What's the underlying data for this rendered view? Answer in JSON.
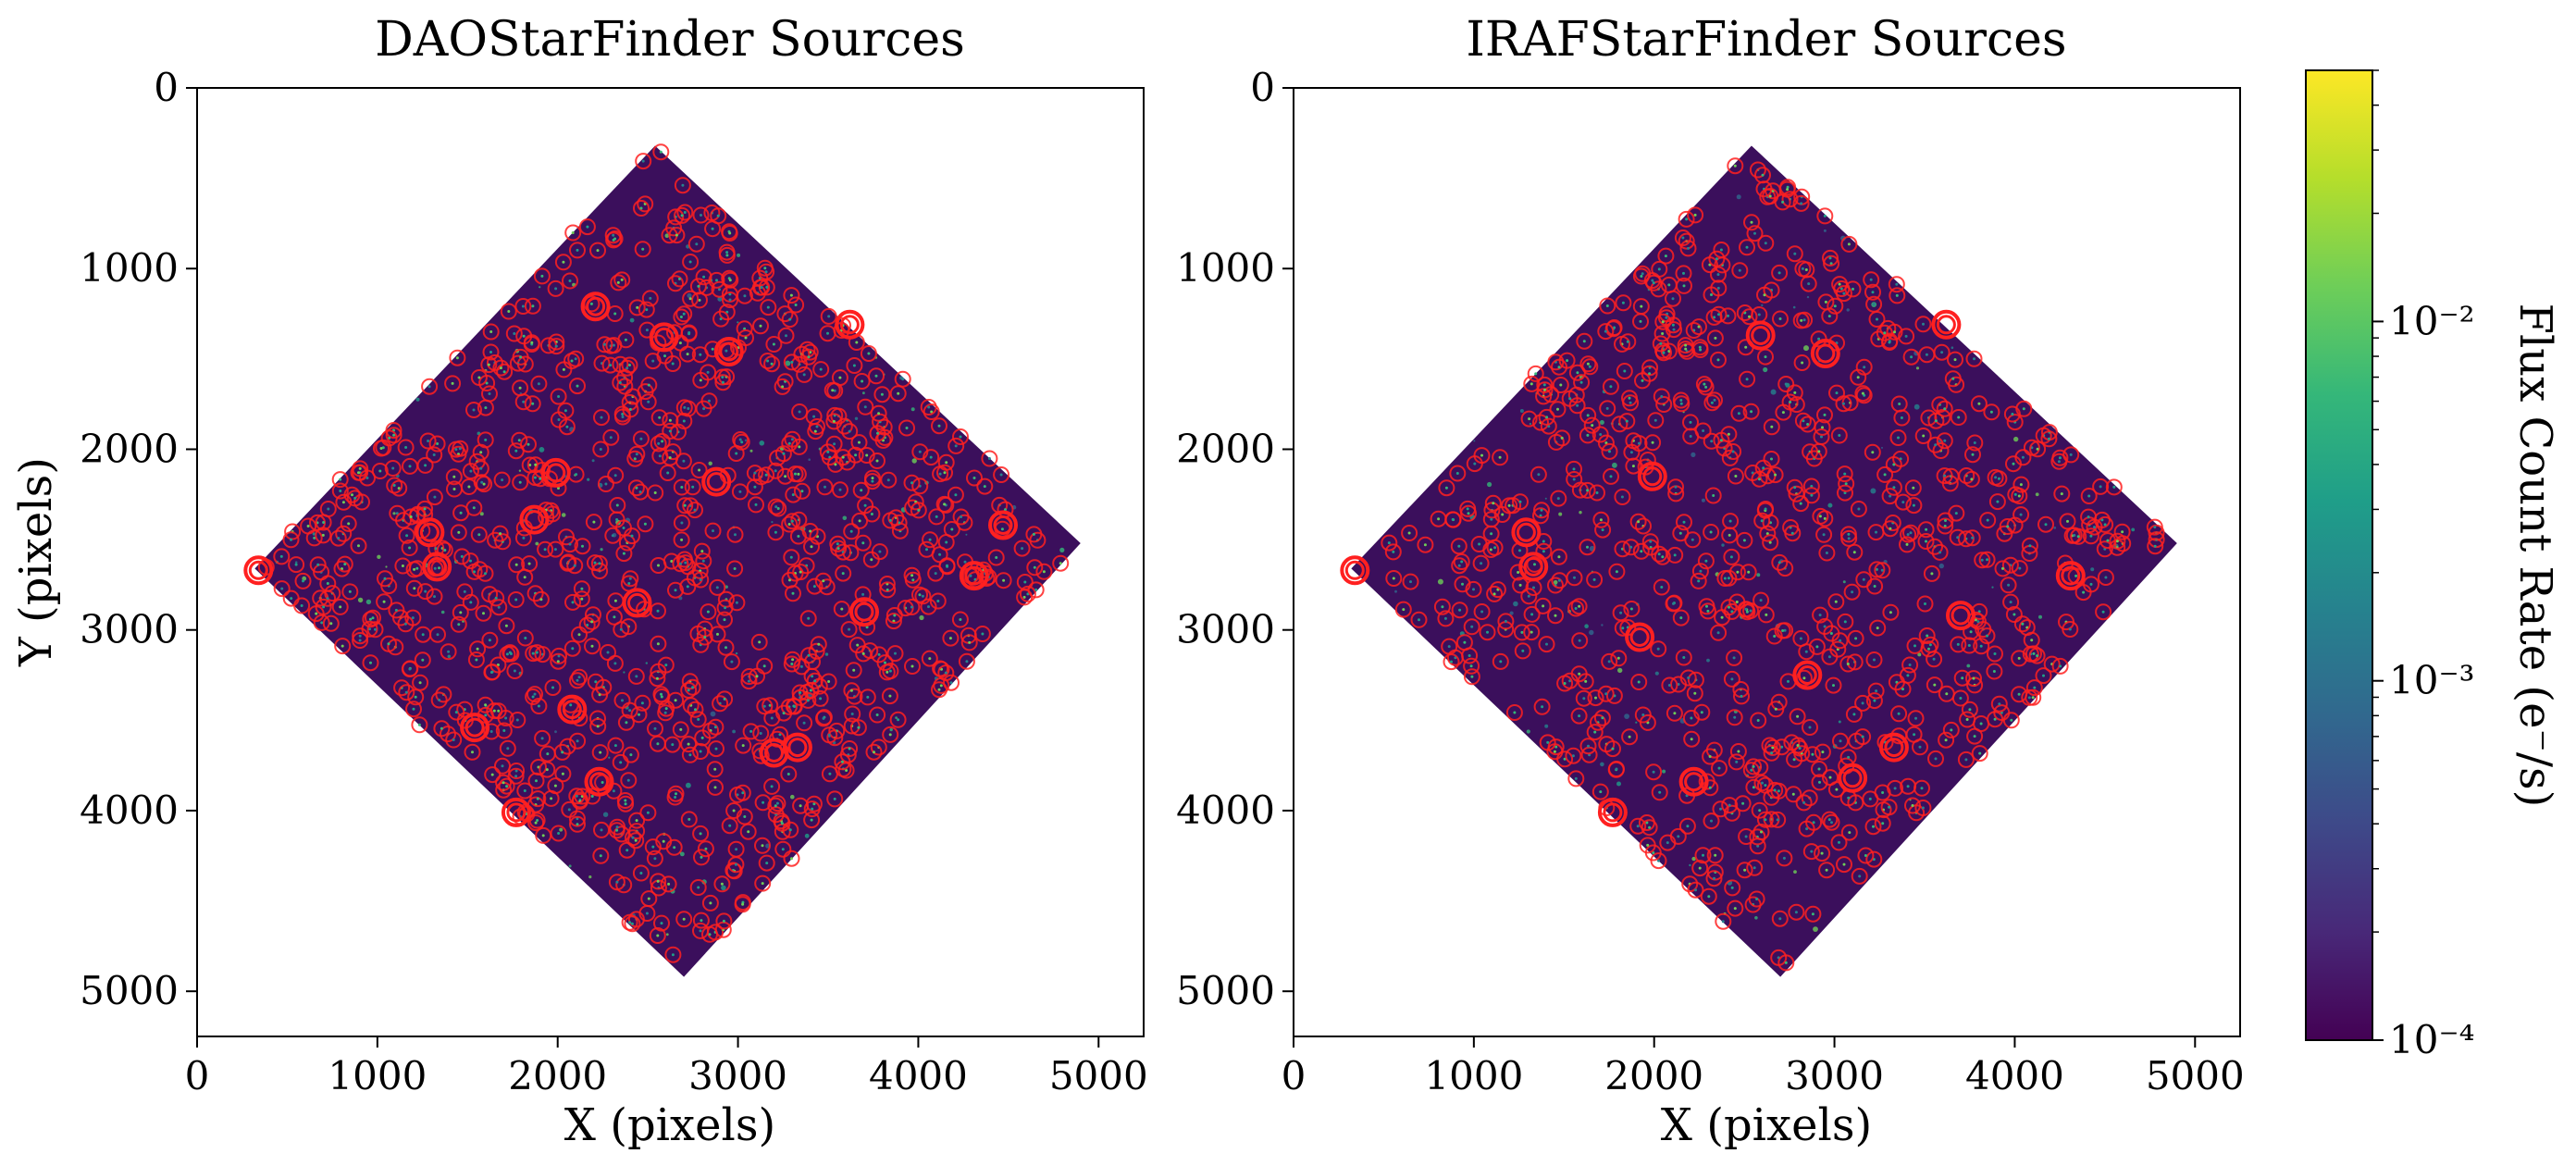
{
  "chart_data": [
    {
      "type": "scatter",
      "title": "DAOStarFinder Sources",
      "xlabel": "X (pixels)",
      "ylabel": "Y (pixels)",
      "xlim": [
        0,
        5250
      ],
      "ylim": [
        5250,
        0
      ],
      "xticks": [
        "0",
        "1000",
        "2000",
        "3000",
        "4000",
        "5000"
      ],
      "yticks": [
        "0",
        "1000",
        "2000",
        "3000",
        "4000",
        "5000"
      ],
      "image_footprint": [
        [
          2540,
          320
        ],
        [
          4900,
          2520
        ],
        [
          2700,
          4920
        ],
        [
          320,
          2660
        ]
      ],
      "marker_color": "#ff2020",
      "highlighted_sources": [
        {
          "x": 340,
          "y": 2670
        },
        {
          "x": 1290,
          "y": 2460
        },
        {
          "x": 1330,
          "y": 2650
        },
        {
          "x": 1540,
          "y": 3540
        },
        {
          "x": 1770,
          "y": 4010
        },
        {
          "x": 1990,
          "y": 2130
        },
        {
          "x": 2080,
          "y": 3440
        },
        {
          "x": 2210,
          "y": 1210
        },
        {
          "x": 2230,
          "y": 3840
        },
        {
          "x": 2590,
          "y": 1380
        },
        {
          "x": 2950,
          "y": 1460
        },
        {
          "x": 3200,
          "y": 3680
        },
        {
          "x": 3330,
          "y": 3650
        },
        {
          "x": 3620,
          "y": 1310
        },
        {
          "x": 4310,
          "y": 2700
        },
        {
          "x": 4470,
          "y": 2420
        },
        {
          "x": 2440,
          "y": 2850
        },
        {
          "x": 2880,
          "y": 2180
        },
        {
          "x": 1870,
          "y": 2390
        },
        {
          "x": 3700,
          "y": 2900
        }
      ]
    },
    {
      "type": "scatter",
      "title": "IRAFStarFinder Sources",
      "xlabel": "X (pixels)",
      "ylabel": "",
      "xlim": [
        0,
        5250
      ],
      "ylim": [
        5250,
        0
      ],
      "xticks": [
        "0",
        "1000",
        "2000",
        "3000",
        "4000",
        "5000"
      ],
      "yticks": [
        "0",
        "1000",
        "2000",
        "3000",
        "4000",
        "5000"
      ],
      "image_footprint": [
        [
          2540,
          320
        ],
        [
          4900,
          2520
        ],
        [
          2700,
          4920
        ],
        [
          320,
          2660
        ]
      ],
      "marker_color": "#ff2020",
      "highlighted_sources": [
        {
          "x": 340,
          "y": 2670
        },
        {
          "x": 1290,
          "y": 2460
        },
        {
          "x": 1330,
          "y": 2650
        },
        {
          "x": 1770,
          "y": 4010
        },
        {
          "x": 1990,
          "y": 2150
        },
        {
          "x": 2220,
          "y": 3840
        },
        {
          "x": 2590,
          "y": 1370
        },
        {
          "x": 2950,
          "y": 1470
        },
        {
          "x": 3620,
          "y": 1310
        },
        {
          "x": 4310,
          "y": 2700
        },
        {
          "x": 3330,
          "y": 3650
        },
        {
          "x": 3100,
          "y": 3820
        },
        {
          "x": 2850,
          "y": 3250
        },
        {
          "x": 1920,
          "y": 3040
        },
        {
          "x": 3700,
          "y": 2920
        }
      ]
    }
  ],
  "colorbar": {
    "label": "Flux Count Rate (e⁻/s)",
    "scale": "log",
    "range": [
      0.0001,
      0.05
    ],
    "tick_labels": [
      "10⁻⁴",
      "10⁻³",
      "10⁻²"
    ],
    "tick_values": [
      0.0001,
      0.001,
      0.01
    ],
    "colormap": "viridis",
    "colormap_stops": [
      "#440154",
      "#482878",
      "#3e4989",
      "#31688e",
      "#26828e",
      "#1f9e89",
      "#35b779",
      "#6ece58",
      "#b5de2b",
      "#fde725"
    ],
    "background_color": "#3b0f5c"
  }
}
